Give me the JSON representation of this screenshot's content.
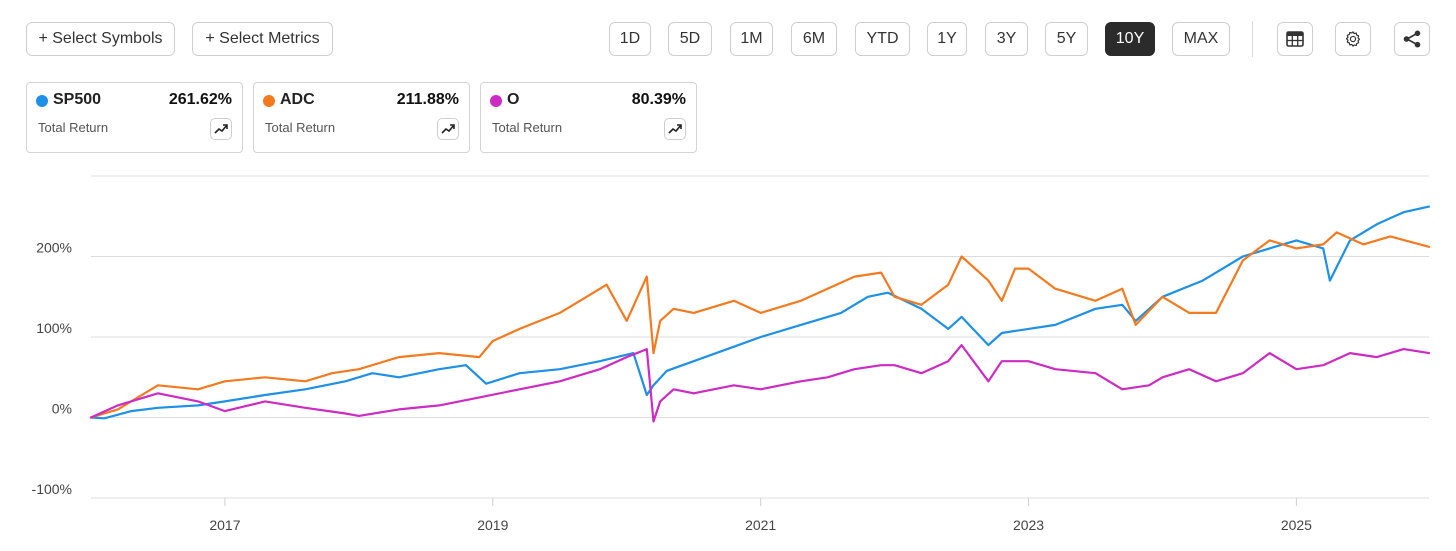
{
  "toolbar": {
    "select_symbols": "+ Select Symbols",
    "select_metrics": "+ Select Metrics",
    "periods": [
      "1D",
      "5D",
      "1M",
      "6M",
      "YTD",
      "1Y",
      "3Y",
      "5Y",
      "10Y",
      "MAX"
    ],
    "active_period": "10Y",
    "icons": [
      "table-icon",
      "gear-icon",
      "share-icon"
    ]
  },
  "cards": [
    {
      "symbol": "SP500",
      "value": "261.62%",
      "metric": "Total Return",
      "color": "#1e90e6"
    },
    {
      "symbol": "ADC",
      "value": "211.88%",
      "metric": "Total Return",
      "color": "#f47a20"
    },
    {
      "symbol": "O",
      "value": "80.39%",
      "metric": "Total Return",
      "color": "#cc2bc4"
    }
  ],
  "chart_data": {
    "type": "line",
    "x_ticks": [
      "2017",
      "2019",
      "2021",
      "2023",
      "2025"
    ],
    "y_ticks": [
      "200%",
      "100%",
      "0%",
      "-100%"
    ],
    "ylim": [
      -100,
      300
    ],
    "xlim": [
      2016.0,
      2025.99
    ],
    "grid": "horizontal",
    "series": [
      {
        "name": "SP500",
        "color": "#1e90e6",
        "x": [
          2016.0,
          2016.1,
          2016.3,
          2016.5,
          2016.8,
          2017.0,
          2017.3,
          2017.6,
          2017.9,
          2018.1,
          2018.3,
          2018.6,
          2018.8,
          2018.95,
          2019.2,
          2019.5,
          2019.8,
          2020.05,
          2020.15,
          2020.2,
          2020.3,
          2020.5,
          2020.8,
          2021.0,
          2021.3,
          2021.6,
          2021.8,
          2021.95,
          2022.2,
          2022.4,
          2022.5,
          2022.7,
          2022.8,
          2023.0,
          2023.2,
          2023.5,
          2023.7,
          2023.8,
          2024.0,
          2024.3,
          2024.6,
          2024.8,
          2025.0,
          2025.2,
          2025.25,
          2025.4,
          2025.6,
          2025.8,
          2025.99
        ],
        "y": [
          0,
          -1,
          8,
          12,
          15,
          20,
          28,
          35,
          45,
          55,
          50,
          60,
          65,
          42,
          55,
          60,
          70,
          80,
          28,
          40,
          58,
          70,
          88,
          100,
          115,
          130,
          150,
          155,
          135,
          110,
          125,
          90,
          105,
          110,
          115,
          135,
          140,
          120,
          150,
          170,
          200,
          210,
          220,
          210,
          170,
          220,
          240,
          255,
          262
        ]
      },
      {
        "name": "ADC",
        "color": "#f47a20",
        "x": [
          2016.0,
          2016.2,
          2016.5,
          2016.8,
          2017.0,
          2017.3,
          2017.6,
          2017.8,
          2018.0,
          2018.3,
          2018.6,
          2018.9,
          2019.0,
          2019.2,
          2019.5,
          2019.7,
          2019.85,
          2020.0,
          2020.15,
          2020.2,
          2020.25,
          2020.35,
          2020.5,
          2020.8,
          2021.0,
          2021.3,
          2021.5,
          2021.7,
          2021.9,
          2022.0,
          2022.2,
          2022.4,
          2022.5,
          2022.7,
          2022.8,
          2022.9,
          2023.0,
          2023.2,
          2023.5,
          2023.7,
          2023.8,
          2024.0,
          2024.2,
          2024.4,
          2024.6,
          2024.8,
          2025.0,
          2025.2,
          2025.3,
          2025.5,
          2025.7,
          2025.99
        ],
        "y": [
          0,
          10,
          40,
          35,
          45,
          50,
          45,
          55,
          60,
          75,
          80,
          75,
          95,
          110,
          130,
          150,
          165,
          120,
          175,
          80,
          120,
          135,
          130,
          145,
          130,
          145,
          160,
          175,
          180,
          150,
          140,
          165,
          200,
          170,
          145,
          185,
          185,
          160,
          145,
          160,
          115,
          150,
          130,
          130,
          195,
          220,
          210,
          215,
          230,
          215,
          225,
          212
        ]
      },
      {
        "name": "O",
        "color": "#cc2bc4",
        "x": [
          2016.0,
          2016.2,
          2016.5,
          2016.8,
          2017.0,
          2017.3,
          2017.6,
          2017.9,
          2018.0,
          2018.3,
          2018.6,
          2018.9,
          2019.2,
          2019.5,
          2019.8,
          2020.0,
          2020.15,
          2020.2,
          2020.25,
          2020.35,
          2020.5,
          2020.8,
          2021.0,
          2021.3,
          2021.5,
          2021.7,
          2021.9,
          2022.0,
          2022.2,
          2022.4,
          2022.5,
          2022.7,
          2022.8,
          2023.0,
          2023.2,
          2023.5,
          2023.7,
          2023.9,
          2024.0,
          2024.2,
          2024.4,
          2024.6,
          2024.8,
          2025.0,
          2025.2,
          2025.4,
          2025.6,
          2025.8,
          2025.99
        ],
        "y": [
          0,
          15,
          30,
          20,
          8,
          20,
          12,
          5,
          2,
          10,
          15,
          25,
          35,
          45,
          60,
          75,
          85,
          -5,
          20,
          35,
          30,
          40,
          35,
          45,
          50,
          60,
          65,
          65,
          55,
          70,
          90,
          45,
          70,
          70,
          60,
          55,
          35,
          40,
          50,
          60,
          45,
          55,
          80,
          60,
          65,
          80,
          75,
          85,
          80
        ]
      }
    ]
  }
}
